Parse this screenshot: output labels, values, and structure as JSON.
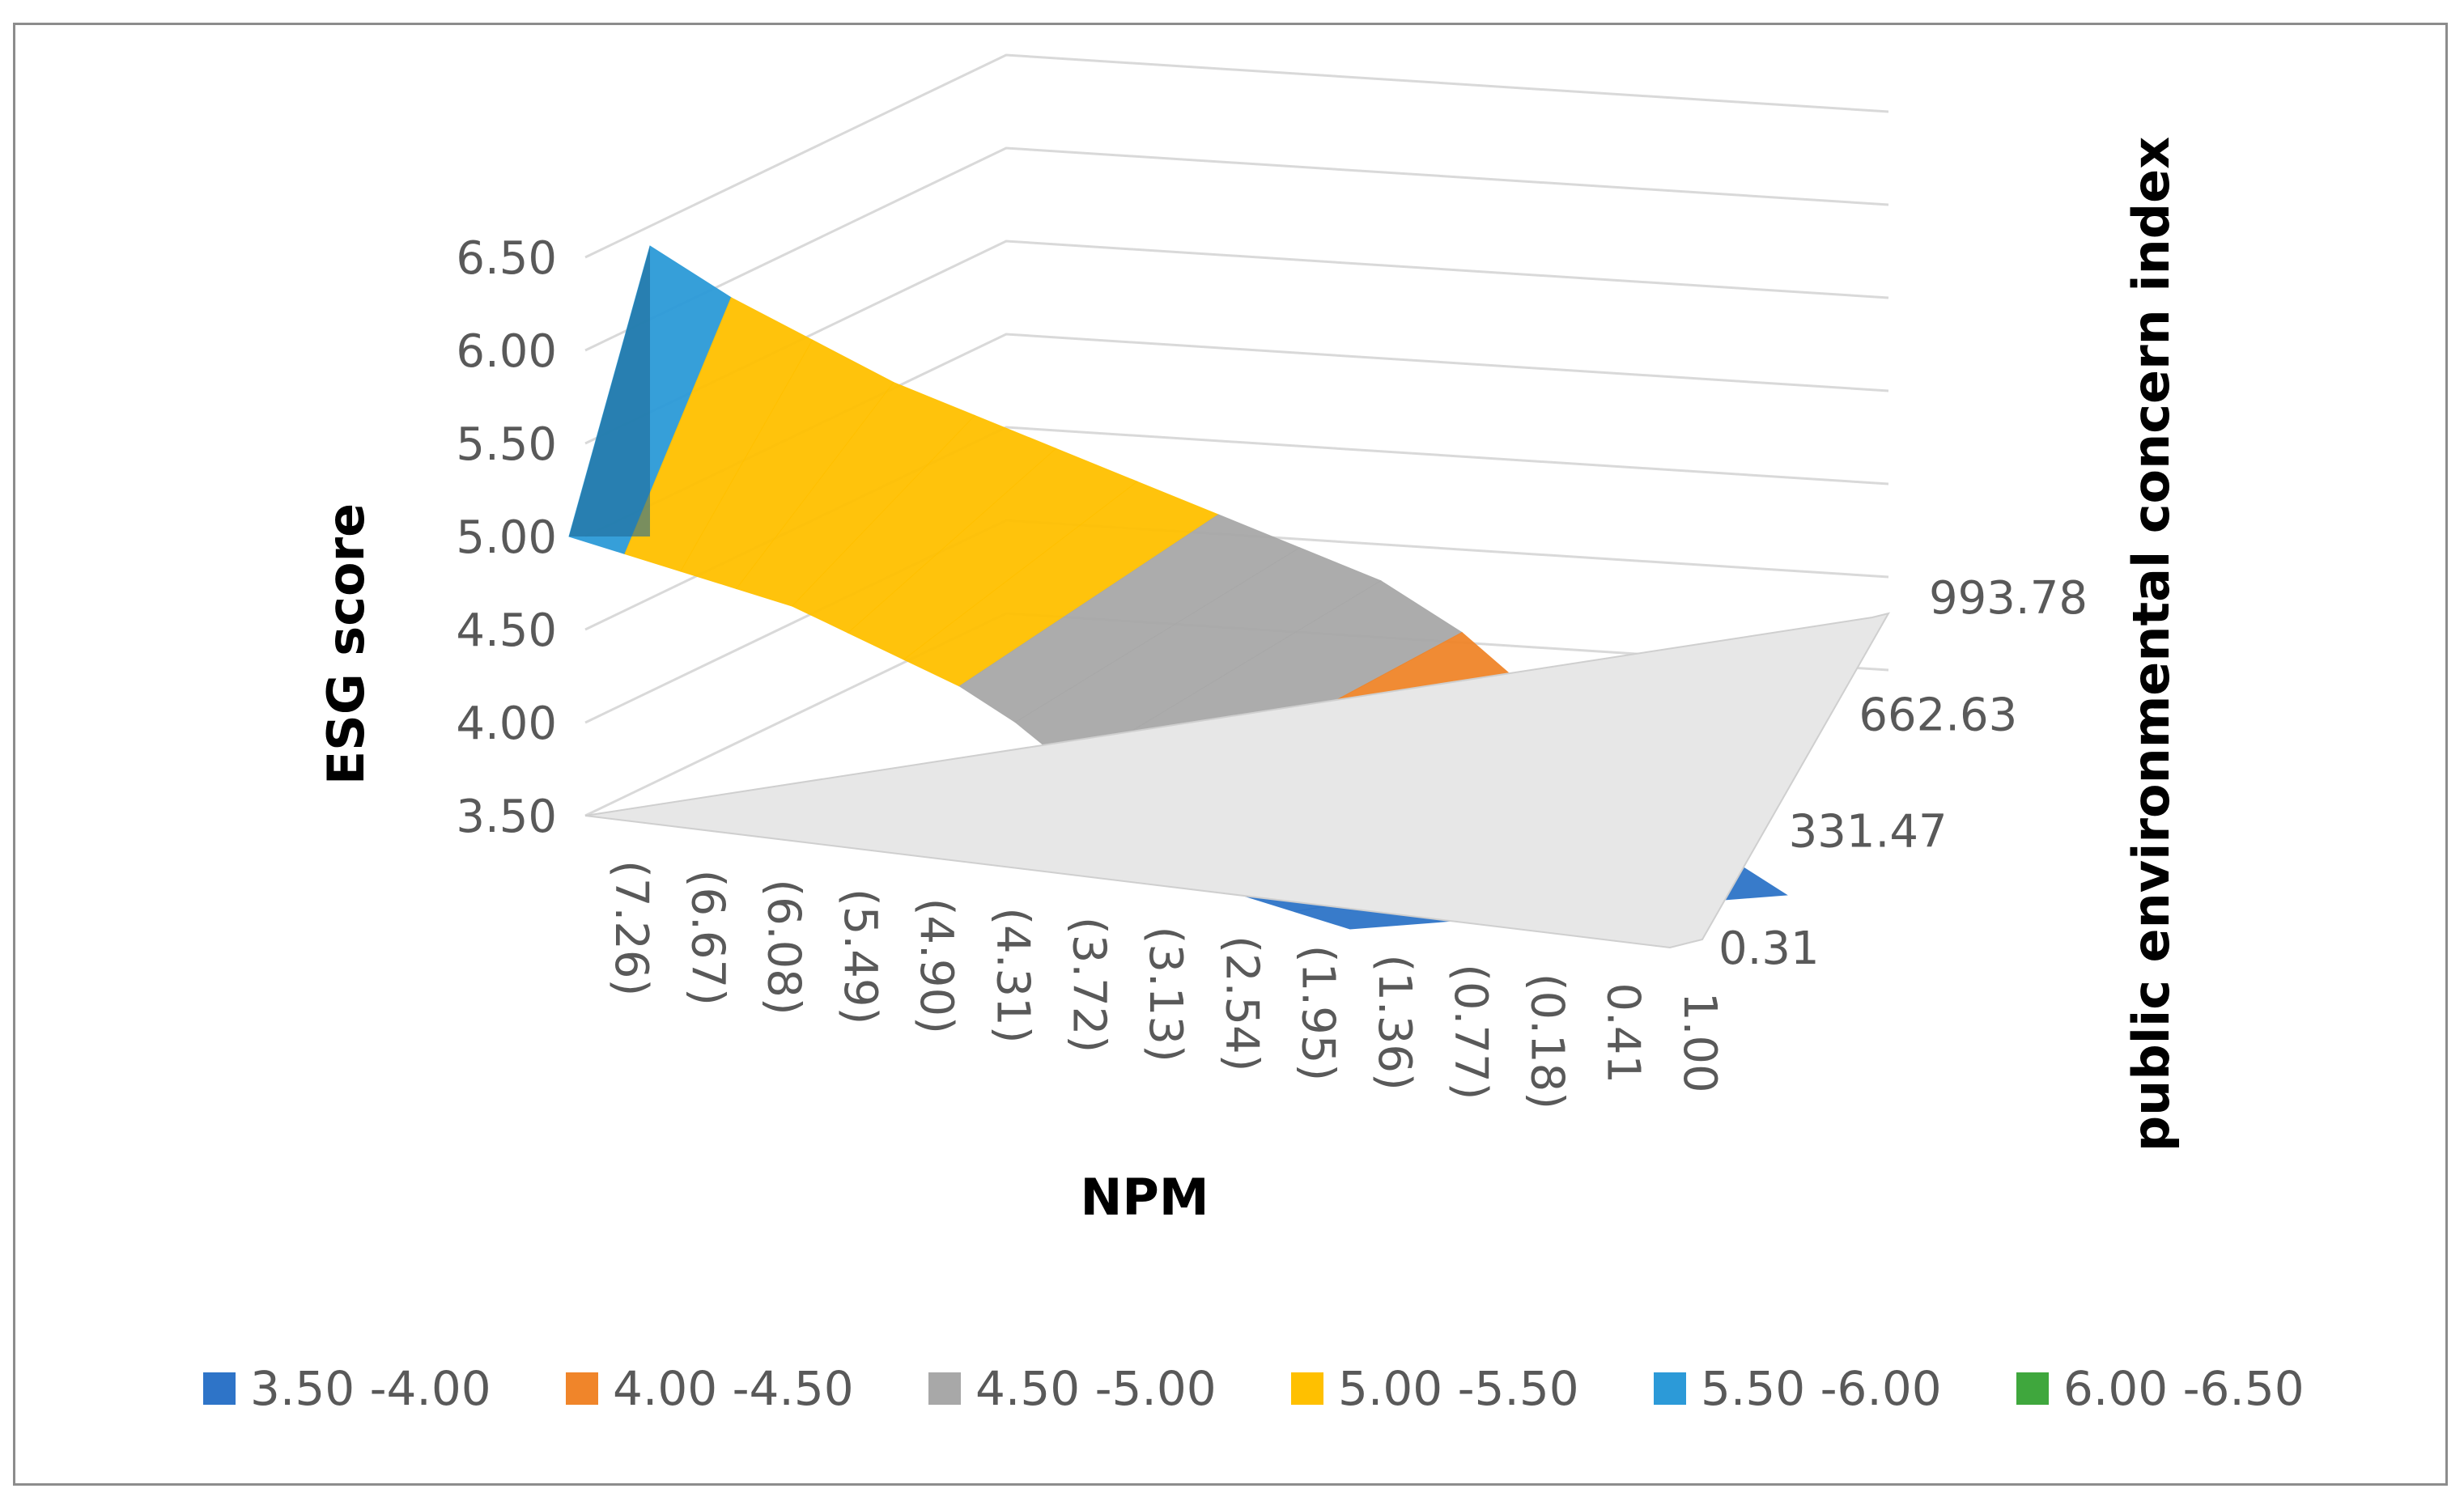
{
  "chart_data": {
    "type": "surface",
    "title": "",
    "xlabel": "NPM",
    "ylabel": "ESG score",
    "zlabel": "public environmental concern index",
    "z_ticks": [
      "3.50",
      "4.00",
      "4.50",
      "5.00",
      "5.50",
      "6.00",
      "6.50"
    ],
    "zlim": [
      3.5,
      6.5
    ],
    "x_ticks": [
      "(7.26)",
      "(6.67)",
      "(6.08)",
      "(5.49)",
      "(4.90)",
      "(4.31)",
      "(3.72)",
      "(3.13)",
      "(2.54)",
      "(1.95)",
      "(1.36)",
      "(0.77)",
      "(0.18)",
      "0.41",
      "1.00"
    ],
    "y_ticks": [
      "0.31",
      "331.47",
      "662.63",
      "993.78"
    ],
    "legend": [
      {
        "label": "3.50 -4.00",
        "color": "#2e74c8"
      },
      {
        "label": "4.00 -4.50",
        "color": "#f0852a"
      },
      {
        "label": "4.50 -5.00",
        "color": "#a8a8a8"
      },
      {
        "label": "5.00 -5.50",
        "color": "#ffc000"
      },
      {
        "label": "5.50 -6.00",
        "color": "#2c9ad8"
      },
      {
        "label": "6.00 -6.50",
        "color": "#3fa73d"
      }
    ],
    "series_description": "ESG score surface over NPM and public environmental concern index",
    "front_edge_esg": [
      5.0,
      4.95,
      4.9,
      4.85,
      4.8,
      4.7,
      4.6,
      4.5,
      4.35,
      4.15,
      3.95,
      3.75,
      3.6,
      3.55,
      3.5
    ],
    "back_edge_esg": [
      6.3,
      6.1,
      5.95,
      5.8,
      5.7,
      5.6,
      5.5,
      5.4,
      5.3,
      5.2,
      5.0,
      4.7,
      4.4,
      4.1,
      3.9
    ]
  }
}
